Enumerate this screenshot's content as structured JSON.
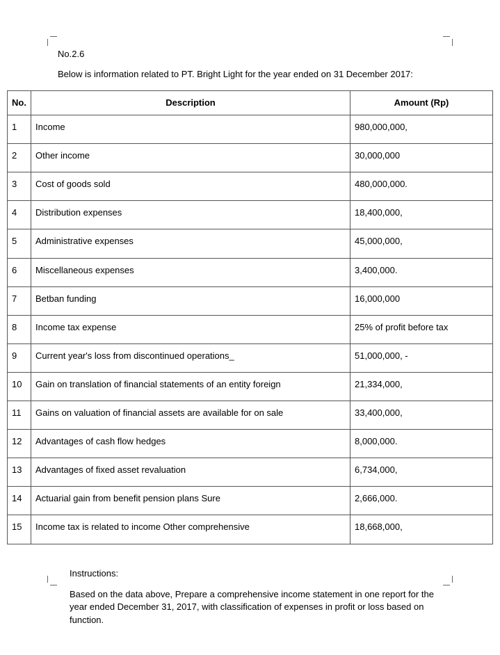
{
  "doc_number": "No.2.6",
  "intro_text": "Below is information related to PT. Bright Light for the year ended on 31 December 2017:",
  "table": {
    "headers": {
      "no": "No.",
      "description": "Description",
      "amount": "Amount (Rp)"
    },
    "rows": [
      {
        "no": "1",
        "description": "Income",
        "amount": "980,000,000,"
      },
      {
        "no": "2",
        "description": "Other income",
        "amount": "30,000,000"
      },
      {
        "no": "3",
        "description": "Cost of goods sold",
        "amount": "480,000,000."
      },
      {
        "no": "4",
        "description": "Distribution expenses",
        "amount": "18,400,000,"
      },
      {
        "no": "5",
        "description": "Administrative expenses",
        "amount": "45,000,000,"
      },
      {
        "no": "6",
        "description": "Miscellaneous expenses",
        "amount": "3,400,000."
      },
      {
        "no": "7",
        "description": "Betban funding",
        "amount": "16,000,000"
      },
      {
        "no": "8",
        "description": "Income tax expense",
        "amount": "25% of profit before tax"
      },
      {
        "no": "9",
        "description": "Current year's loss from discontinued operations_",
        "amount": "51,000,000, -"
      },
      {
        "no": "10",
        "description": "Gain on translation of financial statements of an entity foreign",
        "amount": "21,334,000,"
      },
      {
        "no": "11",
        "description": "Gains on valuation of financial assets are available for on sale",
        "amount": "33,400,000,"
      },
      {
        "no": "12",
        "description": "Advantages of cash flow hedges",
        "amount": "8,000,000."
      },
      {
        "no": "13",
        "description": "Advantages of fixed asset revaluation",
        "amount": "6,734,000,"
      },
      {
        "no": "14",
        "description": "Actuarial gain from benefit pension plans Sure",
        "amount": "2,666,000."
      },
      {
        "no": "15",
        "description": "Income tax is related to income Other comprehensive",
        "amount": "18,668,000,"
      }
    ]
  },
  "instructions_label": "Instructions:",
  "instructions_body": "Based on the data above, Prepare a comprehensive income statement in one report for the year ended December 31, 2017, with classification of expenses in profit or loss based on function."
}
